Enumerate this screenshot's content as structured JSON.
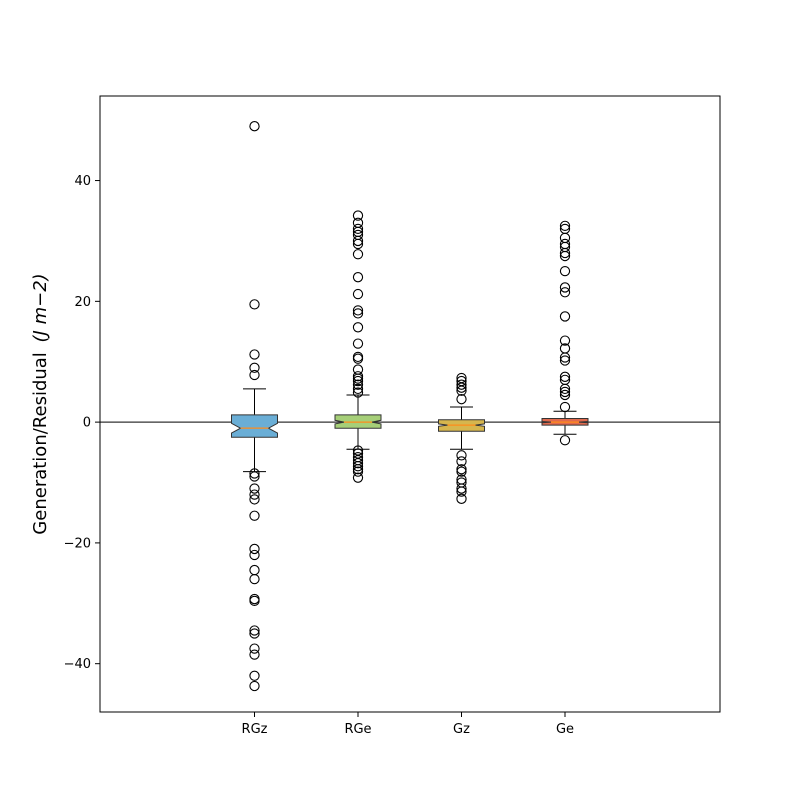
{
  "chart_data": {
    "type": "box",
    "ylabel": "Generation/Residual",
    "ylabel_unit": "(J m−2)",
    "ylim": [
      -48,
      54
    ],
    "yticks": [
      {
        "value": -40,
        "label": "−40"
      },
      {
        "value": -20,
        "label": "−20"
      },
      {
        "value": 0,
        "label": "0"
      },
      {
        "value": 20,
        "label": "20"
      },
      {
        "value": 40,
        "label": "40"
      }
    ],
    "grid": false,
    "zero_line": 0,
    "notched": true,
    "categories": [
      "RGz",
      "RGe",
      "Gz",
      "Ge"
    ],
    "boxes": [
      {
        "name": "RGz",
        "color": "#6aaed6",
        "q1": -2.5,
        "median": -1.0,
        "q3": 1.2,
        "whisker_low": -8.2,
        "whisker_high": 5.5,
        "notch_low": -1.8,
        "notch_high": -0.2,
        "outliers": [
          49,
          19.5,
          11.2,
          9.0,
          7.8,
          -8.5,
          -9.0,
          -11.0,
          -12.0,
          -12.8,
          -15.5,
          -21.0,
          -22.0,
          -24.5,
          -26.0,
          -29.3,
          -29.6,
          -34.5,
          -35.0,
          -37.5,
          -38.5,
          -42.0,
          -43.7
        ]
      },
      {
        "name": "RGe",
        "color": "#a6cf78",
        "q1": -1.0,
        "median": 0.0,
        "q3": 1.2,
        "whisker_low": -4.5,
        "whisker_high": 4.5,
        "notch_low": -0.3,
        "notch_high": 0.3,
        "outliers": [
          34.2,
          33.0,
          32.0,
          31.5,
          31.0,
          30.0,
          29.5,
          27.8,
          24.0,
          21.2,
          18.5,
          18.0,
          15.7,
          13.0,
          10.8,
          10.5,
          8.7,
          7.6,
          7.2,
          6.8,
          6.2,
          5.5,
          4.9,
          -4.7,
          -5.2,
          -5.8,
          -6.3,
          -6.8,
          -7.3,
          -7.8,
          -8.2,
          -9.2
        ]
      },
      {
        "name": "Gz",
        "color": "#d6b64e",
        "q1": -1.5,
        "median": -0.5,
        "q3": 0.4,
        "whisker_low": -4.5,
        "whisker_high": 2.5,
        "notch_low": -0.7,
        "notch_high": -0.3,
        "outliers": [
          7.3,
          6.8,
          6.2,
          5.7,
          5.2,
          3.8,
          -5.5,
          -6.5,
          -7.8,
          -8.2,
          -9.5,
          -10.0,
          -11.0,
          -11.5,
          -12.7
        ]
      },
      {
        "name": "Ge",
        "color": "#e06a4e",
        "q1": -0.5,
        "median": 0.0,
        "q3": 0.6,
        "whisker_low": -2.0,
        "whisker_high": 1.8,
        "notch_low": -0.1,
        "notch_high": 0.1,
        "outliers": [
          32.5,
          32.0,
          30.5,
          29.5,
          29.0,
          28.0,
          27.5,
          25.0,
          22.3,
          21.5,
          17.5,
          13.5,
          12.2,
          10.7,
          10.2,
          7.5,
          7.0,
          5.5,
          5.0,
          4.5,
          2.5,
          -3.0
        ]
      }
    ]
  }
}
